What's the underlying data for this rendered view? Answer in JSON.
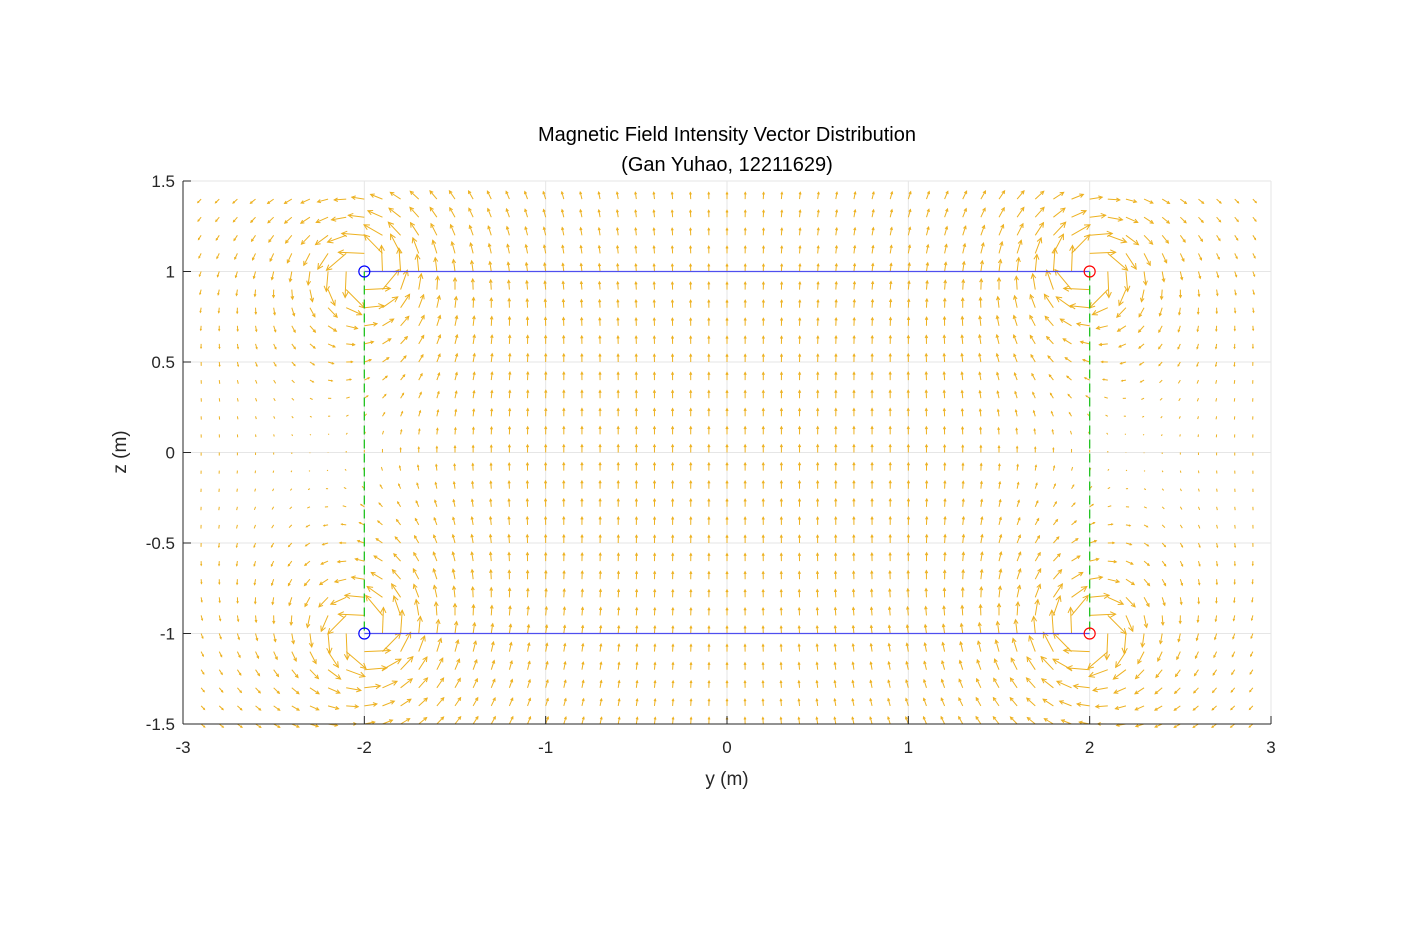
{
  "chart_data": {
    "type": "quiver",
    "title": "Magnetic Field Intensity Vector Distribution",
    "subtitle": "(Gan Yuhao, 12211629)",
    "xlabel": "y (m)",
    "ylabel": "z (m)",
    "xlim": [
      -3,
      3
    ],
    "ylim": [
      -1.5,
      1.5
    ],
    "xticks": [
      -3,
      -2,
      -1,
      0,
      1,
      2,
      3
    ],
    "yticks": [
      -1.5,
      -1,
      -0.5,
      0,
      0.5,
      1,
      1.5
    ],
    "xtick_labels": [
      "-3",
      "-2",
      "-1",
      "0",
      "1",
      "2",
      "3"
    ],
    "ytick_labels": [
      "-1.5",
      "-1",
      "-0.5",
      "0",
      "0.5",
      "1",
      "1.5"
    ],
    "grid": true,
    "field": {
      "color": "#EDB120",
      "grid_spacing": 0.1,
      "grid_x_range": [
        -2.9,
        2.9
      ],
      "grid_y_range": [
        -1.5,
        1.4
      ],
      "sources": [
        {
          "y": -2,
          "z": 1,
          "current": 1
        },
        {
          "y": -2,
          "z": -1,
          "current": 1
        },
        {
          "y": 2,
          "z": 1,
          "current": -1
        },
        {
          "y": 2,
          "z": -1,
          "current": -1
        }
      ]
    },
    "conductors": [
      {
        "name": "top-conductor",
        "from": [
          -2,
          1
        ],
        "to": [
          2,
          1
        ],
        "style": "solid",
        "color": "#4F4FEF"
      },
      {
        "name": "bottom-conductor",
        "from": [
          -2,
          -1
        ],
        "to": [
          2,
          -1
        ],
        "style": "solid",
        "color": "#4F4FEF"
      },
      {
        "name": "left-connector",
        "from": [
          -2,
          1
        ],
        "to": [
          -2,
          -1
        ],
        "style": "dashed",
        "color": "#22C322"
      },
      {
        "name": "right-connector",
        "from": [
          2,
          1
        ],
        "to": [
          2,
          -1
        ],
        "style": "dashed",
        "color": "#22C322"
      }
    ],
    "markers": [
      {
        "name": "marker-left-top",
        "y": -2,
        "z": 1,
        "color": "#0000FF"
      },
      {
        "name": "marker-left-bottom",
        "y": -2,
        "z": -1,
        "color": "#0000FF"
      },
      {
        "name": "marker-right-top",
        "y": 2,
        "z": 1,
        "color": "#FF0000"
      },
      {
        "name": "marker-right-bottom",
        "y": 2,
        "z": -1,
        "color": "#FF0000"
      }
    ]
  }
}
